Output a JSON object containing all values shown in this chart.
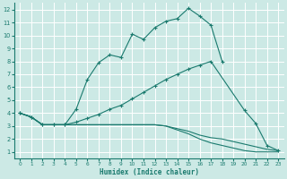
{
  "xlabel": "Humidex (Indice chaleur)",
  "bg_color": "#cce9e5",
  "grid_color": "#ffffff",
  "line_color": "#1a7a6e",
  "xlim": [
    -0.5,
    23.5
  ],
  "ylim": [
    0.5,
    12.5
  ],
  "xticks": [
    0,
    1,
    2,
    3,
    4,
    5,
    6,
    7,
    8,
    9,
    10,
    11,
    12,
    13,
    14,
    15,
    16,
    17,
    18,
    19,
    20,
    21,
    22,
    23
  ],
  "yticks": [
    1,
    2,
    3,
    4,
    5,
    6,
    7,
    8,
    9,
    10,
    11,
    12
  ],
  "line1_x": [
    0,
    1,
    2,
    3,
    4,
    5,
    6,
    7,
    8,
    9,
    10,
    11,
    12,
    13,
    14,
    15,
    16,
    17,
    18
  ],
  "line1_y": [
    4.0,
    3.7,
    3.1,
    3.1,
    3.1,
    4.3,
    6.6,
    7.9,
    8.5,
    8.3,
    10.1,
    9.7,
    10.6,
    11.1,
    11.3,
    12.1,
    11.5,
    10.8,
    8.0
  ],
  "line2_x": [
    0,
    1,
    2,
    3,
    4,
    5,
    6,
    7,
    8,
    9,
    10,
    11,
    12,
    13,
    14,
    15,
    16,
    17,
    20,
    21,
    22,
    23
  ],
  "line2_y": [
    4.0,
    3.7,
    3.1,
    3.1,
    3.1,
    3.3,
    3.6,
    3.9,
    4.3,
    4.6,
    5.1,
    5.6,
    6.1,
    6.6,
    7.0,
    7.4,
    7.7,
    8.0,
    4.2,
    3.2,
    1.5,
    1.1
  ],
  "line3_x": [
    0,
    1,
    2,
    3,
    4,
    5,
    6,
    7,
    8,
    9,
    10,
    11,
    12,
    13,
    14,
    15,
    16,
    17,
    18,
    19,
    20,
    21,
    22,
    23
  ],
  "line3_y": [
    4.0,
    3.7,
    3.1,
    3.1,
    3.1,
    3.1,
    3.1,
    3.1,
    3.1,
    3.1,
    3.1,
    3.1,
    3.1,
    3.0,
    2.8,
    2.6,
    2.3,
    2.1,
    2.0,
    1.8,
    1.6,
    1.4,
    1.2,
    1.1
  ],
  "line4_x": [
    0,
    1,
    2,
    3,
    4,
    5,
    6,
    7,
    8,
    9,
    10,
    11,
    12,
    13,
    14,
    15,
    16,
    17,
    18,
    19,
    20,
    21,
    22,
    23
  ],
  "line4_y": [
    4.0,
    3.7,
    3.1,
    3.1,
    3.1,
    3.1,
    3.1,
    3.1,
    3.1,
    3.1,
    3.1,
    3.1,
    3.1,
    3.0,
    2.7,
    2.4,
    2.0,
    1.7,
    1.5,
    1.3,
    1.1,
    1.0,
    1.0,
    1.0
  ]
}
